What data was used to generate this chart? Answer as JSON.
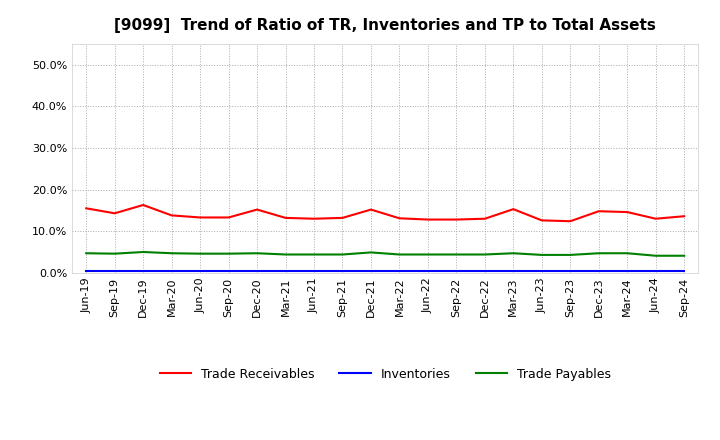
{
  "title": "[9099]  Trend of Ratio of TR, Inventories and TP to Total Assets",
  "x_labels": [
    "Jun-19",
    "Sep-19",
    "Dec-19",
    "Mar-20",
    "Jun-20",
    "Sep-20",
    "Dec-20",
    "Mar-21",
    "Jun-21",
    "Sep-21",
    "Dec-21",
    "Mar-22",
    "Jun-22",
    "Sep-22",
    "Dec-22",
    "Mar-23",
    "Jun-23",
    "Sep-23",
    "Dec-23",
    "Mar-24",
    "Jun-24",
    "Sep-24"
  ],
  "trade_receivables": [
    0.155,
    0.143,
    0.163,
    0.138,
    0.133,
    0.133,
    0.152,
    0.132,
    0.13,
    0.132,
    0.152,
    0.131,
    0.128,
    0.128,
    0.13,
    0.153,
    0.126,
    0.124,
    0.148,
    0.146,
    0.13,
    0.136
  ],
  "inventories": [
    0.005,
    0.005,
    0.005,
    0.005,
    0.005,
    0.005,
    0.005,
    0.005,
    0.005,
    0.005,
    0.005,
    0.005,
    0.005,
    0.005,
    0.005,
    0.005,
    0.005,
    0.005,
    0.005,
    0.005,
    0.005,
    0.005
  ],
  "trade_payables": [
    0.047,
    0.046,
    0.05,
    0.047,
    0.046,
    0.046,
    0.047,
    0.044,
    0.044,
    0.044,
    0.049,
    0.044,
    0.044,
    0.044,
    0.044,
    0.047,
    0.043,
    0.043,
    0.047,
    0.047,
    0.041,
    0.041
  ],
  "tr_color": "#FF0000",
  "inv_color": "#0000FF",
  "tp_color": "#008000",
  "ylim": [
    0.0,
    0.55
  ],
  "yticks": [
    0.0,
    0.1,
    0.2,
    0.3,
    0.4,
    0.5
  ],
  "background_color": "#FFFFFF",
  "grid_color": "#AAAAAA",
  "legend_labels": [
    "Trade Receivables",
    "Inventories",
    "Trade Payables"
  ]
}
